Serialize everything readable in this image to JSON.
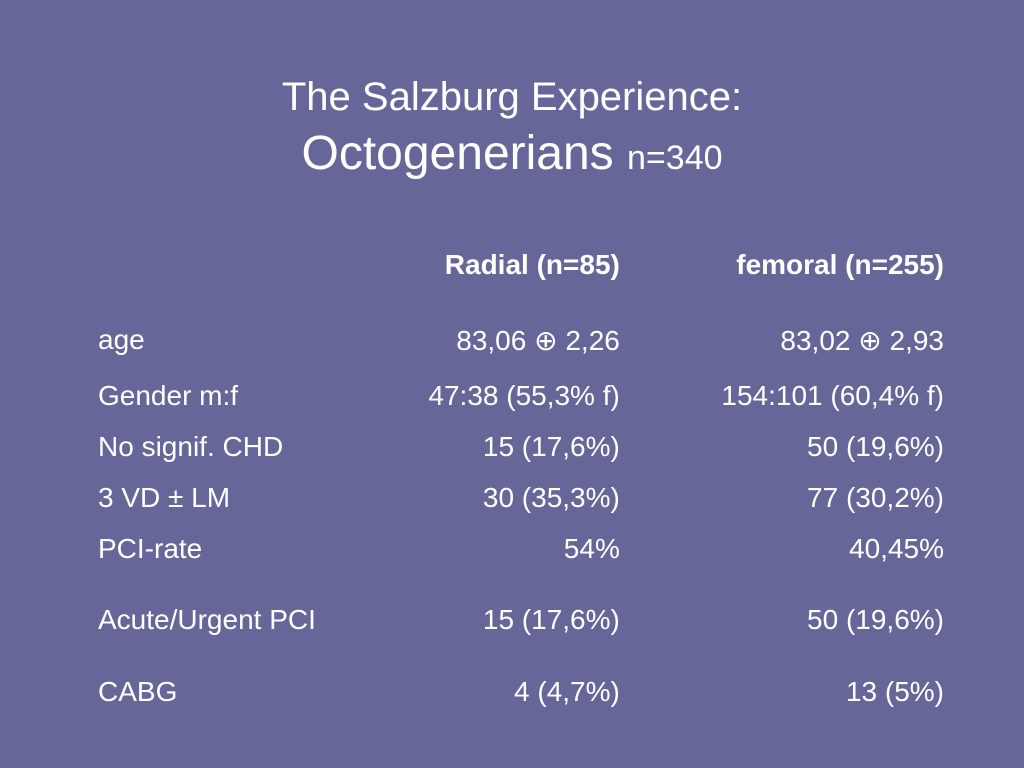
{
  "title": {
    "line1": "The Salzburg Experience:",
    "line2": "Octogenerians",
    "n": "n=340"
  },
  "table": {
    "columns": [
      "",
      "Radial  (n=85)",
      "femoral (n=255)"
    ],
    "rows": [
      {
        "label": "age",
        "radial": "83,06 ⊕ 2,26",
        "femoral": "83,02 ⊕ 2,93"
      },
      {
        "label": "Gender m:f",
        "radial": "47:38 (55,3% f)",
        "femoral": "154:101 (60,4% f)"
      },
      {
        "label": "No signif. CHD",
        "radial": "15 (17,6%)",
        "femoral": "50 (19,6%)"
      },
      {
        "label": "3 VD ± LM",
        "radial": "30 (35,3%)",
        "femoral": "77 (30,2%)"
      },
      {
        "label": "PCI-rate",
        "radial": "54%",
        "femoral": "40,45%"
      },
      {
        "label": "Acute/Urgent PCI",
        "radial": "15 (17,6%)",
        "femoral": "50 (19,6%)"
      },
      {
        "label": "CABG",
        "radial": "4 (4,7%)",
        "femoral": "13 (5%)"
      }
    ]
  },
  "colors": {
    "background": "#666699",
    "text": "#ffffff"
  }
}
